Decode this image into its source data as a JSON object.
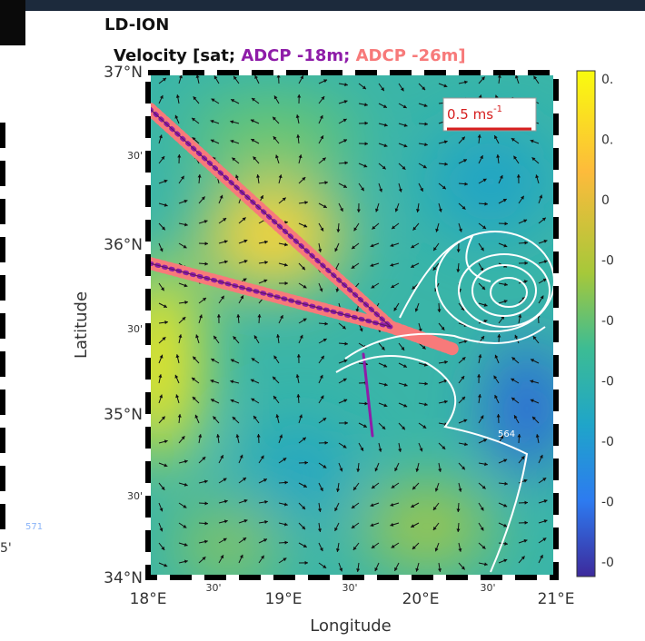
{
  "header": {
    "title": "LD-ION",
    "subtitle_start": "Velocity [sat;",
    "subtitle_adcp18": "ADCP -18m;",
    "subtitle_adcp26": "ADCP -26m]"
  },
  "map": {
    "lat_labels": [
      "37°N",
      "30'",
      "36°N",
      "30'",
      "35°N",
      "30'",
      "34°N"
    ],
    "lon_labels": [
      "18°E",
      "30'",
      "19°E",
      "30'",
      "20°E",
      "30'",
      "21°E"
    ],
    "ylabel": "Latitude",
    "xlabel": "Longitude",
    "scale_text": "0.5 ms",
    "scale_sup": "-1",
    "annotations": [
      "564",
      "571"
    ]
  },
  "left_panel": {
    "tick": "5'"
  },
  "colorbar": {
    "ticks": [
      "0.",
      "0.",
      "0",
      "-0",
      "-0",
      "-0",
      "-0",
      "-0",
      "-0"
    ]
  }
}
